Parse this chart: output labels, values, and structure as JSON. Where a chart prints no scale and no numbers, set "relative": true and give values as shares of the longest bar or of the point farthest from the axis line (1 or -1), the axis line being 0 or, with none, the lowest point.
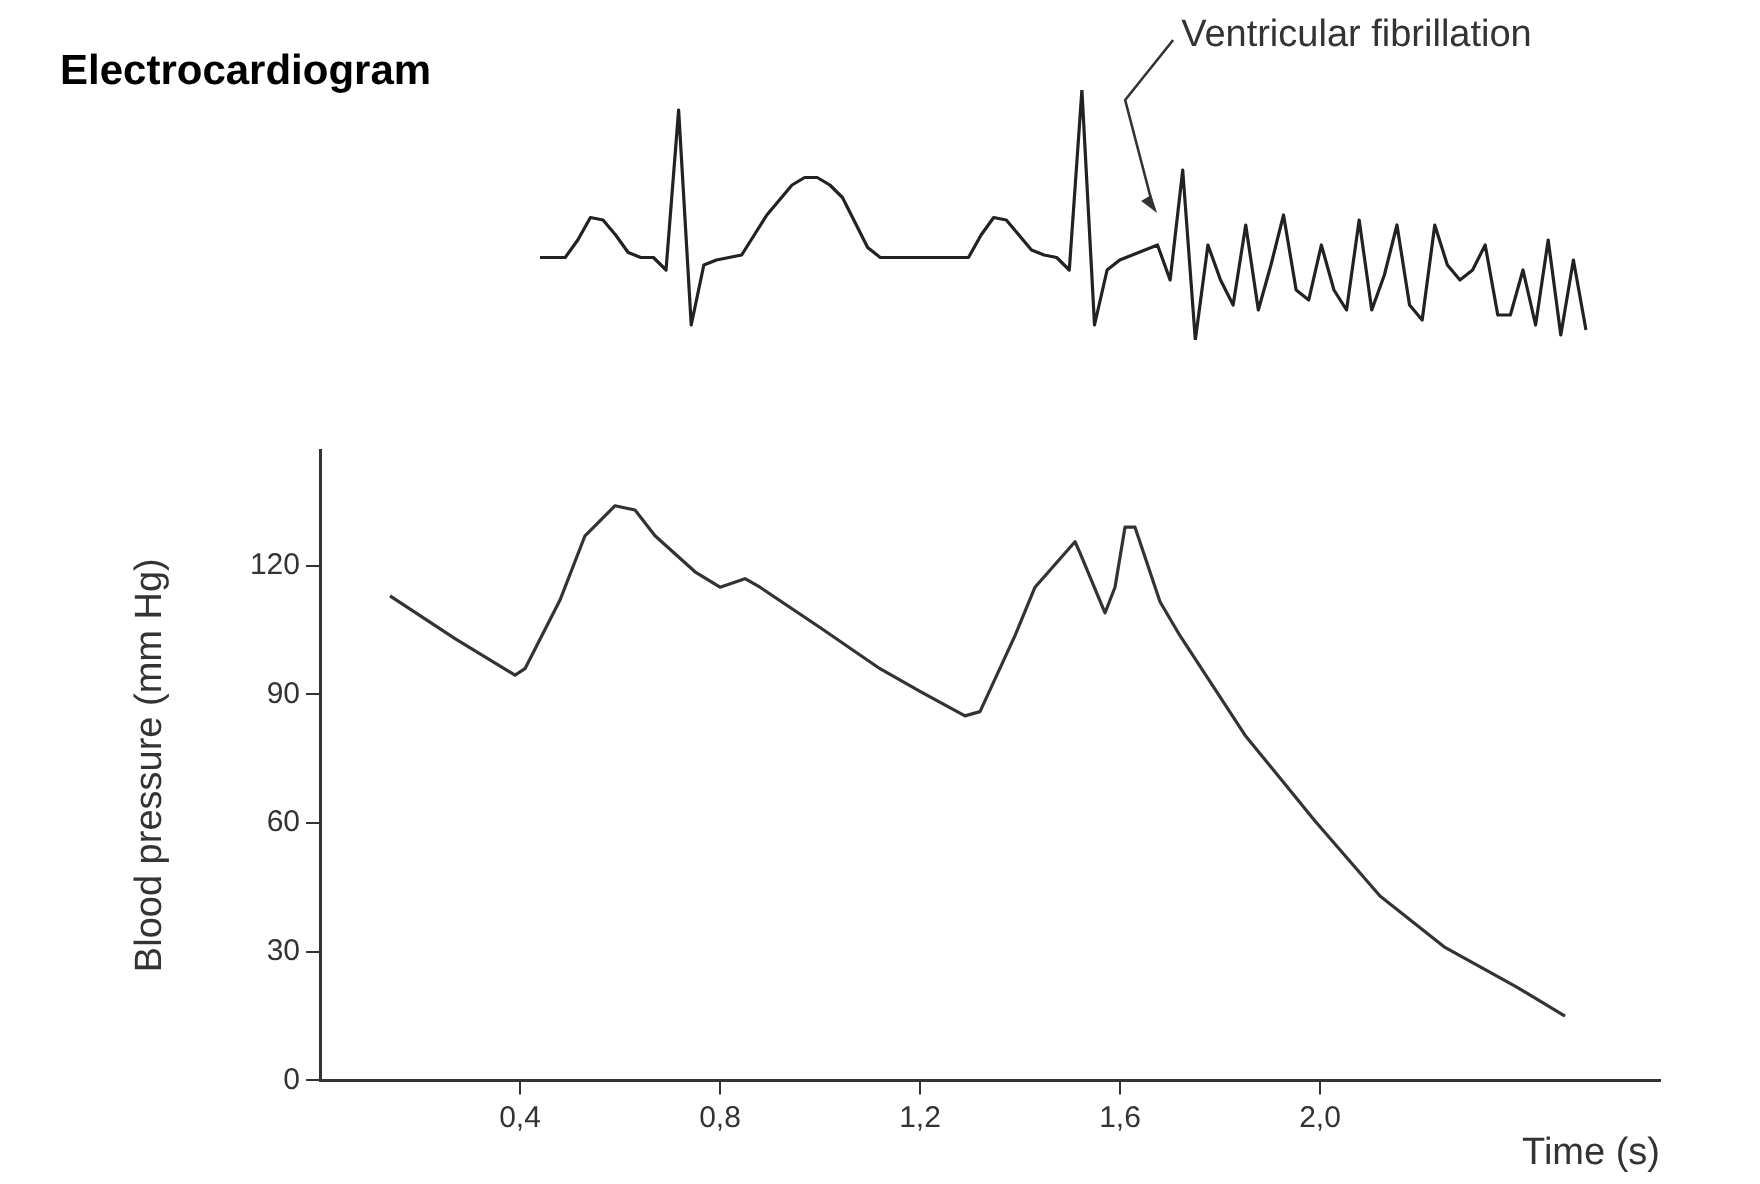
{
  "chart_data": [
    {
      "type": "line",
      "title": "Electrocardiogram",
      "relative": true,
      "tick_labels": false,
      "annotations": [
        "Ventricular fibrillation"
      ],
      "categories": [
        null,
        null,
        null,
        null,
        null,
        null,
        null,
        null,
        null,
        null,
        null,
        null,
        null,
        null,
        null,
        null,
        null,
        null,
        null,
        null,
        null,
        null,
        null,
        null,
        null,
        null,
        null,
        null,
        null,
        null,
        null,
        null,
        null,
        null,
        null,
        null,
        null,
        null,
        null,
        null,
        null,
        null,
        null,
        null,
        null,
        null,
        null,
        null,
        null,
        null,
        null,
        null,
        null,
        null,
        null,
        null,
        null,
        null,
        null,
        null,
        null,
        null,
        null,
        null,
        null,
        null,
        null,
        null,
        null,
        null,
        null,
        null,
        null,
        null,
        null,
        null,
        null,
        null,
        null,
        null,
        null,
        null,
        null,
        null
      ],
      "series": [
        {
          "color": "#222222",
          "values": [
            0.33,
            0.33,
            0.33,
            0.4,
            0.49,
            0.48,
            0.42,
            0.35,
            0.33,
            0.33,
            0.28,
            0.92,
            0.06,
            0.3,
            0.32,
            0.33,
            0.34,
            0.42,
            0.5,
            0.56,
            0.62,
            0.65,
            0.65,
            0.62,
            0.57,
            0.47,
            0.37,
            0.33,
            0.33,
            0.33,
            0.33,
            0.33,
            0.33,
            0.33,
            0.33,
            0.42,
            0.49,
            0.48,
            0.42,
            0.36,
            0.34,
            0.33,
            0.28,
            1,
            0.06,
            0.28,
            0.32,
            0.34,
            0.36,
            0.38,
            0.24,
            0.68,
            0,
            0.38,
            0.24,
            0.14,
            0.46,
            0.12,
            0.3,
            0.5,
            0.2,
            0.16,
            0.38,
            0.2,
            0.12,
            0.48,
            0.12,
            0.26,
            0.46,
            0.14,
            0.08,
            0.46,
            0.3,
            0.24,
            0.28,
            0.38,
            0.1,
            0.1,
            0.28,
            0.06,
            0.4,
            0.02,
            0.32,
            0.04
          ]
        }
      ]
    },
    {
      "type": "line",
      "xlabel": "Time (s)",
      "ylabel": "Blood pressure (mm Hg)",
      "xlim": [
        0,
        2.68
      ],
      "ylim": [
        0,
        147
      ],
      "xticks": [
        {
          "value": 0.4,
          "label": "0,4"
        },
        {
          "value": 0.8,
          "label": "0,8"
        },
        {
          "value": 1.2,
          "label": "1,2"
        },
        {
          "value": 1.6,
          "label": "1,6"
        },
        {
          "value": 2.0,
          "label": "2,0"
        }
      ],
      "yticks": [
        0,
        30,
        60,
        90,
        120
      ],
      "grid": false,
      "series": [
        {
          "color": "#333333",
          "x": [
            0.14,
            0.27,
            0.39,
            0.41,
            0.48,
            0.53,
            0.59,
            0.63,
            0.67,
            0.75,
            0.8,
            0.85,
            0.88,
            1.0,
            1.12,
            1.2,
            1.29,
            1.32,
            1.39,
            1.43,
            1.51,
            1.52,
            1.57,
            1.59,
            1.61,
            1.63,
            1.68,
            1.72,
            1.85,
            1.99,
            2.12,
            2.25,
            2.39,
            2.49
          ],
          "values": [
            113,
            103,
            94.5,
            96,
            112,
            127,
            134,
            133,
            127,
            118.6,
            115,
            117,
            115,
            105.6,
            96,
            90.7,
            85,
            86,
            103.7,
            115,
            125.6,
            123,
            109,
            115,
            129,
            129,
            111.6,
            103.7,
            80.5,
            60.5,
            43,
            31,
            22,
            15
          ]
        }
      ]
    }
  ]
}
